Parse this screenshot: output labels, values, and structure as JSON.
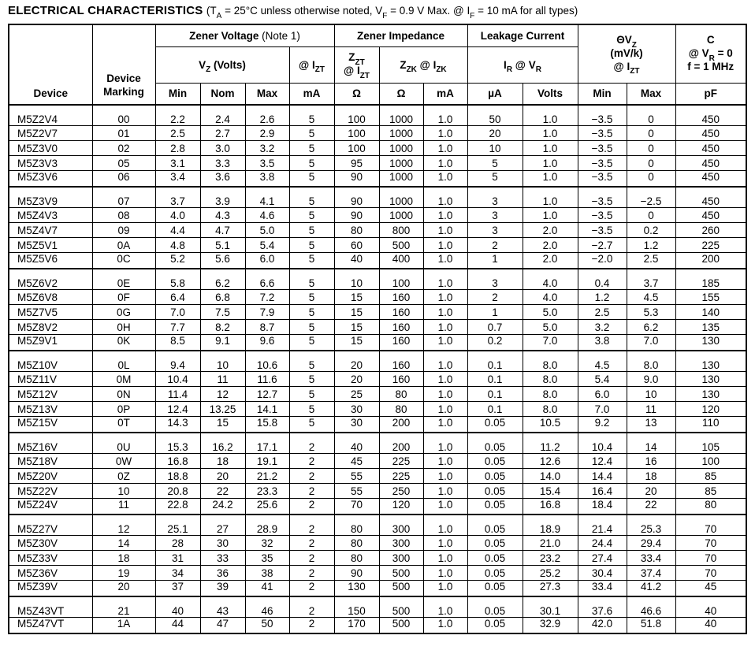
{
  "title": {
    "main": "ELECTRICAL CHARACTERISTICS",
    "condition": "(T~A~ = 25°C unless otherwise noted, V~F~ = 0.9 V Max. @ I~F~ = 10 mA for all types)"
  },
  "header": {
    "device": "Device",
    "device_marking": "Device\nMarking",
    "zener_voltage": "Zener Voltage",
    "zener_voltage_note": "(Note 1)",
    "zener_impedance": "Zener Impedance",
    "leakage_current": "Leakage Current",
    "theta_vz": "ΘV~Z~\n(mV/k)\n@ I~ZT~",
    "capacitance": "C\n@ V~R~ = 0\nf = 1 MHz",
    "vz_volts": "V~Z~ (Volts)",
    "at_izt": "@ I~ZT~",
    "zzt_at_izt": "Z~ZT~\n@ I~ZT~",
    "zzk_at_izk": "Z~ZK~ @ I~ZK~",
    "ir_at_vr": "I~R~ @ V~R~",
    "units": [
      "Min",
      "Nom",
      "Max",
      "mA",
      "Ω",
      "Ω",
      "mA",
      "µA",
      "Volts",
      "Min",
      "Max",
      "pF"
    ]
  },
  "columns": [
    "device",
    "marking",
    "vz-min",
    "vz-nom",
    "vz-max",
    "izt-ma",
    "zzt-ohm",
    "zzk-ohm",
    "izk-ma",
    "ir-ua",
    "vr-volts",
    "theta-vz-min",
    "theta-vz-max",
    "c-pf"
  ],
  "groups": [
    {
      "rows": [
        [
          "M5Z2V4",
          "00",
          "2.2",
          "2.4",
          "2.6",
          "5",
          "100",
          "1000",
          "1.0",
          "50",
          "1.0",
          "−3.5",
          "0",
          "450"
        ],
        [
          "M5Z2V7",
          "01",
          "2.5",
          "2.7",
          "2.9",
          "5",
          "100",
          "1000",
          "1.0",
          "20",
          "1.0",
          "−3.5",
          "0",
          "450"
        ],
        [
          "M5Z3V0",
          "02",
          "2.8",
          "3.0",
          "3.2",
          "5",
          "100",
          "1000",
          "1.0",
          "10",
          "1.0",
          "−3.5",
          "0",
          "450"
        ],
        [
          "M5Z3V3",
          "05",
          "3.1",
          "3.3",
          "3.5",
          "5",
          "95",
          "1000",
          "1.0",
          "5",
          "1.0",
          "−3.5",
          "0",
          "450"
        ],
        [
          "M5Z3V6",
          "06",
          "3.4",
          "3.6",
          "3.8",
          "5",
          "90",
          "1000",
          "1.0",
          "5",
          "1.0",
          "−3.5",
          "0",
          "450"
        ]
      ]
    },
    {
      "rows": [
        [
          "M5Z3V9",
          "07",
          "3.7",
          "3.9",
          "4.1",
          "5",
          "90",
          "1000",
          "1.0",
          "3",
          "1.0",
          "−3.5",
          "−2.5",
          "450"
        ],
        [
          "M5Z4V3",
          "08",
          "4.0",
          "4.3",
          "4.6",
          "5",
          "90",
          "1000",
          "1.0",
          "3",
          "1.0",
          "−3.5",
          "0",
          "450"
        ],
        [
          "M5Z4V7",
          "09",
          "4.4",
          "4.7",
          "5.0",
          "5",
          "80",
          "800",
          "1.0",
          "3",
          "2.0",
          "−3.5",
          "0.2",
          "260"
        ],
        [
          "M5Z5V1",
          "0A",
          "4.8",
          "5.1",
          "5.4",
          "5",
          "60",
          "500",
          "1.0",
          "2",
          "2.0",
          "−2.7",
          "1.2",
          "225"
        ],
        [
          "M5Z5V6",
          "0C",
          "5.2",
          "5.6",
          "6.0",
          "5",
          "40",
          "400",
          "1.0",
          "1",
          "2.0",
          "−2.0",
          "2.5",
          "200"
        ]
      ]
    },
    {
      "rows": [
        [
          "M5Z6V2",
          "0E",
          "5.8",
          "6.2",
          "6.6",
          "5",
          "10",
          "100",
          "1.0",
          "3",
          "4.0",
          "0.4",
          "3.7",
          "185"
        ],
        [
          "M5Z6V8",
          "0F",
          "6.4",
          "6.8",
          "7.2",
          "5",
          "15",
          "160",
          "1.0",
          "2",
          "4.0",
          "1.2",
          "4.5",
          "155"
        ],
        [
          "M5Z7V5",
          "0G",
          "7.0",
          "7.5",
          "7.9",
          "5",
          "15",
          "160",
          "1.0",
          "1",
          "5.0",
          "2.5",
          "5.3",
          "140"
        ],
        [
          "M5Z8V2",
          "0H",
          "7.7",
          "8.2",
          "8.7",
          "5",
          "15",
          "160",
          "1.0",
          "0.7",
          "5.0",
          "3.2",
          "6.2",
          "135"
        ],
        [
          "M5Z9V1",
          "0K",
          "8.5",
          "9.1",
          "9.6",
          "5",
          "15",
          "160",
          "1.0",
          "0.2",
          "7.0",
          "3.8",
          "7.0",
          "130"
        ]
      ]
    },
    {
      "rows": [
        [
          "M5Z10V",
          "0L",
          "9.4",
          "10",
          "10.6",
          "5",
          "20",
          "160",
          "1.0",
          "0.1",
          "8.0",
          "4.5",
          "8.0",
          "130"
        ],
        [
          "M5Z11V",
          "0M",
          "10.4",
          "11",
          "11.6",
          "5",
          "20",
          "160",
          "1.0",
          "0.1",
          "8.0",
          "5.4",
          "9.0",
          "130"
        ],
        [
          "M5Z12V",
          "0N",
          "11.4",
          "12",
          "12.7",
          "5",
          "25",
          "80",
          "1.0",
          "0.1",
          "8.0",
          "6.0",
          "10",
          "130"
        ],
        [
          "M5Z13V",
          "0P",
          "12.4",
          "13.25",
          "14.1",
          "5",
          "30",
          "80",
          "1.0",
          "0.1",
          "8.0",
          "7.0",
          "11",
          "120"
        ],
        [
          "M5Z15V",
          "0T",
          "14.3",
          "15",
          "15.8",
          "5",
          "30",
          "200",
          "1.0",
          "0.05",
          "10.5",
          "9.2",
          "13",
          "110"
        ]
      ]
    },
    {
      "rows": [
        [
          "M5Z16V",
          "0U",
          "15.3",
          "16.2",
          "17.1",
          "2",
          "40",
          "200",
          "1.0",
          "0.05",
          "11.2",
          "10.4",
          "14",
          "105"
        ],
        [
          "M5Z18V",
          "0W",
          "16.8",
          "18",
          "19.1",
          "2",
          "45",
          "225",
          "1.0",
          "0.05",
          "12.6",
          "12.4",
          "16",
          "100"
        ],
        [
          "M5Z20V",
          "0Z",
          "18.8",
          "20",
          "21.2",
          "2",
          "55",
          "225",
          "1.0",
          "0.05",
          "14.0",
          "14.4",
          "18",
          "85"
        ],
        [
          "M5Z22V",
          "10",
          "20.8",
          "22",
          "23.3",
          "2",
          "55",
          "250",
          "1.0",
          "0.05",
          "15.4",
          "16.4",
          "20",
          "85"
        ],
        [
          "M5Z24V",
          "11",
          "22.8",
          "24.2",
          "25.6",
          "2",
          "70",
          "120",
          "1.0",
          "0.05",
          "16.8",
          "18.4",
          "22",
          "80"
        ]
      ]
    },
    {
      "rows": [
        [
          "M5Z27V",
          "12",
          "25.1",
          "27",
          "28.9",
          "2",
          "80",
          "300",
          "1.0",
          "0.05",
          "18.9",
          "21.4",
          "25.3",
          "70"
        ],
        [
          "M5Z30V",
          "14",
          "28",
          "30",
          "32",
          "2",
          "80",
          "300",
          "1.0",
          "0.05",
          "21.0",
          "24.4",
          "29.4",
          "70"
        ],
        [
          "M5Z33V",
          "18",
          "31",
          "33",
          "35",
          "2",
          "80",
          "300",
          "1.0",
          "0.05",
          "23.2",
          "27.4",
          "33.4",
          "70"
        ],
        [
          "M5Z36V",
          "19",
          "34",
          "36",
          "38",
          "2",
          "90",
          "500",
          "1.0",
          "0.05",
          "25.2",
          "30.4",
          "37.4",
          "70"
        ],
        [
          "M5Z39V",
          "20",
          "37",
          "39",
          "41",
          "2",
          "130",
          "500",
          "1.0",
          "0.05",
          "27.3",
          "33.4",
          "41.2",
          "45"
        ]
      ]
    },
    {
      "rows": [
        [
          "M5Z43VT",
          "21",
          "40",
          "43",
          "46",
          "2",
          "150",
          "500",
          "1.0",
          "0.05",
          "30.1",
          "37.6",
          "46.6",
          "40"
        ],
        [
          "M5Z47VT",
          "1A",
          "44",
          "47",
          "50",
          "2",
          "170",
          "500",
          "1.0",
          "0.05",
          "32.9",
          "42.0",
          "51.8",
          "40"
        ]
      ]
    }
  ]
}
